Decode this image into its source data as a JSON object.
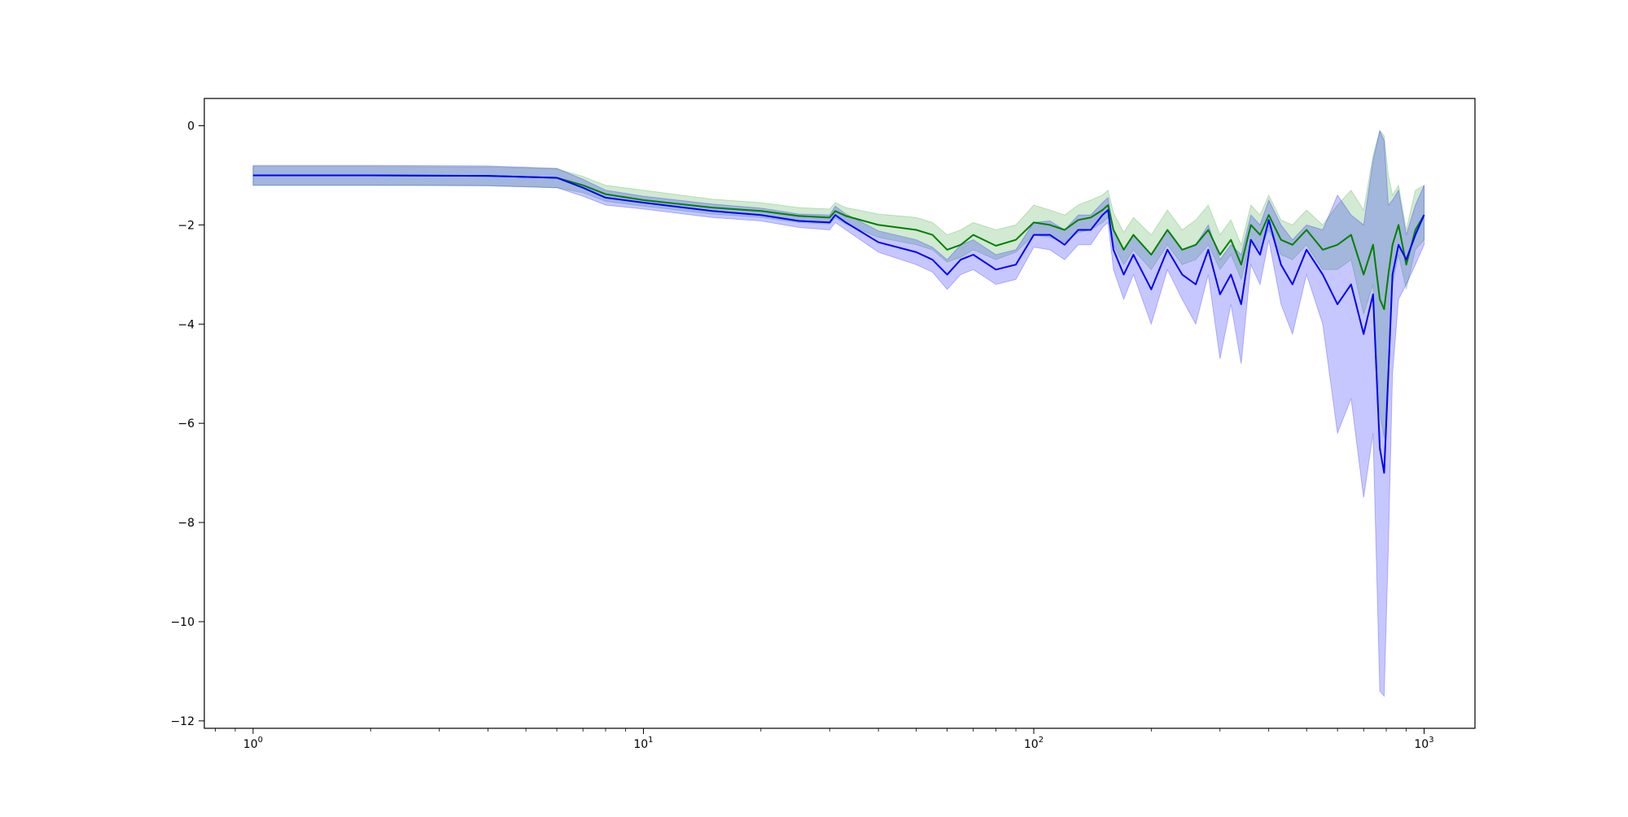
{
  "chart_data": {
    "type": "line",
    "title": "",
    "xlabel": "",
    "ylabel": "",
    "xscale": "log",
    "xlim": [
      0.75,
      1350
    ],
    "ylim": [
      -12.15,
      0.55
    ],
    "grid": false,
    "legend": "none",
    "x_ticks": [
      {
        "value": 1,
        "base": "10",
        "exp": "0"
      },
      {
        "value": 10,
        "base": "10",
        "exp": "1"
      },
      {
        "value": 100,
        "base": "10",
        "exp": "2"
      },
      {
        "value": 1000,
        "base": "10",
        "exp": "3"
      }
    ],
    "y_ticks": [
      {
        "value": 0,
        "label": "0"
      },
      {
        "value": -2,
        "label": "−2"
      },
      {
        "value": -4,
        "label": "−4"
      },
      {
        "value": -6,
        "label": "−6"
      },
      {
        "value": -8,
        "label": "−8"
      },
      {
        "value": -10,
        "label": "−10"
      },
      {
        "value": -12,
        "label": "−12"
      }
    ],
    "series": [
      {
        "color": "#008000",
        "band_color": "#2ca02c",
        "x": [
          1,
          2,
          4,
          6,
          7,
          8,
          10,
          15,
          20,
          25,
          30,
          31,
          33,
          40,
          50,
          55,
          60,
          65,
          70,
          80,
          90,
          100,
          110,
          120,
          130,
          140,
          150,
          155,
          160,
          170,
          180,
          200,
          220,
          240,
          260,
          280,
          300,
          320,
          340,
          360,
          380,
          400,
          430,
          460,
          500,
          550,
          600,
          650,
          700,
          740,
          770,
          790,
          810,
          830,
          860,
          900,
          950,
          1000
        ],
        "y": [
          -1.0,
          -1.0,
          -1.01,
          -1.05,
          -1.2,
          -1.38,
          -1.5,
          -1.65,
          -1.72,
          -1.82,
          -1.85,
          -1.72,
          -1.82,
          -2.0,
          -2.1,
          -2.2,
          -2.5,
          -2.4,
          -2.2,
          -2.42,
          -2.3,
          -1.95,
          -2.0,
          -2.1,
          -1.9,
          -1.85,
          -1.7,
          -1.6,
          -2.1,
          -2.5,
          -2.2,
          -2.6,
          -2.1,
          -2.5,
          -2.4,
          -2.1,
          -2.6,
          -2.3,
          -2.8,
          -2.0,
          -2.2,
          -1.8,
          -2.3,
          -2.4,
          -2.1,
          -2.5,
          -2.4,
          -2.2,
          -3.0,
          -2.4,
          -3.5,
          -3.7,
          -3.0,
          -2.4,
          -2.0,
          -2.8,
          -2.1,
          -1.8
        ],
        "lower": [
          -1.2,
          -1.2,
          -1.21,
          -1.25,
          -1.35,
          -1.52,
          -1.62,
          -1.78,
          -1.85,
          -1.95,
          -1.98,
          -1.86,
          -1.98,
          -2.25,
          -2.4,
          -2.5,
          -2.75,
          -2.65,
          -2.5,
          -2.7,
          -2.55,
          -2.2,
          -2.25,
          -2.35,
          -2.15,
          -2.1,
          -1.95,
          -1.85,
          -2.4,
          -2.8,
          -2.5,
          -2.9,
          -2.4,
          -2.8,
          -2.7,
          -2.4,
          -2.9,
          -2.6,
          -3.1,
          -2.3,
          -2.5,
          -2.1,
          -2.6,
          -2.7,
          -2.4,
          -2.9,
          -2.9,
          -2.7,
          -3.8,
          -3.2,
          -5.8,
          -6.3,
          -4.8,
          -3.2,
          -2.6,
          -3.3,
          -2.5,
          -2.3
        ],
        "upper": [
          -0.82,
          -0.82,
          -0.83,
          -0.87,
          -1.02,
          -1.2,
          -1.3,
          -1.48,
          -1.55,
          -1.65,
          -1.68,
          -1.55,
          -1.65,
          -1.78,
          -1.85,
          -1.95,
          -2.2,
          -2.1,
          -1.95,
          -2.1,
          -2.0,
          -1.6,
          -1.7,
          -1.8,
          -1.6,
          -1.5,
          -1.4,
          -1.3,
          -1.75,
          -2.15,
          -1.85,
          -2.2,
          -1.7,
          -2.1,
          -1.9,
          -1.6,
          -2.2,
          -1.9,
          -2.4,
          -1.6,
          -1.8,
          -1.4,
          -1.9,
          -2.0,
          -1.7,
          -2.0,
          -1.6,
          -1.3,
          -1.7,
          -0.6,
          -0.1,
          -0.2,
          -1.0,
          -1.4,
          -1.2,
          -2.1,
          -1.3,
          -1.2
        ]
      },
      {
        "color": "#0000ff",
        "band_color": "#0000ff",
        "x": [
          1,
          2,
          4,
          6,
          7,
          8,
          10,
          15,
          20,
          25,
          30,
          31,
          33,
          40,
          50,
          55,
          60,
          65,
          70,
          80,
          90,
          100,
          110,
          120,
          130,
          140,
          150,
          155,
          160,
          170,
          180,
          200,
          220,
          240,
          260,
          280,
          300,
          320,
          340,
          360,
          380,
          400,
          430,
          460,
          500,
          550,
          600,
          650,
          700,
          740,
          770,
          790,
          810,
          830,
          860,
          900,
          950,
          1000
        ],
        "y": [
          -1.0,
          -1.0,
          -1.01,
          -1.05,
          -1.25,
          -1.45,
          -1.55,
          -1.72,
          -1.8,
          -1.92,
          -1.95,
          -1.8,
          -1.95,
          -2.35,
          -2.55,
          -2.7,
          -3.0,
          -2.7,
          -2.6,
          -2.9,
          -2.8,
          -2.2,
          -2.2,
          -2.4,
          -2.1,
          -2.1,
          -1.8,
          -1.7,
          -2.5,
          -3.0,
          -2.6,
          -3.3,
          -2.5,
          -3.0,
          -3.2,
          -2.5,
          -3.4,
          -3.0,
          -3.6,
          -2.3,
          -2.6,
          -1.9,
          -2.8,
          -3.2,
          -2.5,
          -3.0,
          -3.6,
          -3.2,
          -4.2,
          -3.4,
          -6.5,
          -7.0,
          -5.0,
          -3.0,
          -2.4,
          -2.7,
          -2.2,
          -1.8
        ],
        "lower": [
          -1.2,
          -1.2,
          -1.21,
          -1.25,
          -1.42,
          -1.6,
          -1.68,
          -1.85,
          -1.92,
          -2.05,
          -2.1,
          -1.95,
          -2.1,
          -2.55,
          -2.8,
          -2.95,
          -3.3,
          -3.0,
          -2.9,
          -3.2,
          -3.1,
          -2.45,
          -2.5,
          -2.7,
          -2.4,
          -2.4,
          -2.05,
          -1.95,
          -2.9,
          -3.5,
          -3.0,
          -4.0,
          -2.9,
          -3.5,
          -4.0,
          -3.0,
          -4.7,
          -3.6,
          -4.8,
          -2.8,
          -3.2,
          -2.3,
          -3.6,
          -4.2,
          -3.0,
          -4.0,
          -6.2,
          -5.5,
          -7.5,
          -6.2,
          -11.4,
          -11.5,
          -8.5,
          -5.0,
          -3.5,
          -3.2,
          -2.8,
          -2.4
        ],
        "upper": [
          -0.8,
          -0.8,
          -0.81,
          -0.86,
          -1.08,
          -1.3,
          -1.42,
          -1.58,
          -1.66,
          -1.78,
          -1.8,
          -1.62,
          -1.78,
          -2.12,
          -2.3,
          -2.45,
          -2.7,
          -2.4,
          -2.3,
          -2.6,
          -2.5,
          -1.95,
          -1.92,
          -2.1,
          -1.8,
          -1.8,
          -1.55,
          -1.45,
          -2.1,
          -2.5,
          -2.2,
          -2.6,
          -2.1,
          -2.5,
          -2.4,
          -2.0,
          -2.7,
          -2.4,
          -2.6,
          -1.8,
          -2.0,
          -1.5,
          -2.0,
          -2.3,
          -2.0,
          -2.1,
          -1.4,
          -1.8,
          -2.0,
          -0.7,
          -0.1,
          -0.3,
          -1.6,
          -1.5,
          -1.3,
          -2.2,
          -1.6,
          -1.2
        ]
      }
    ]
  }
}
